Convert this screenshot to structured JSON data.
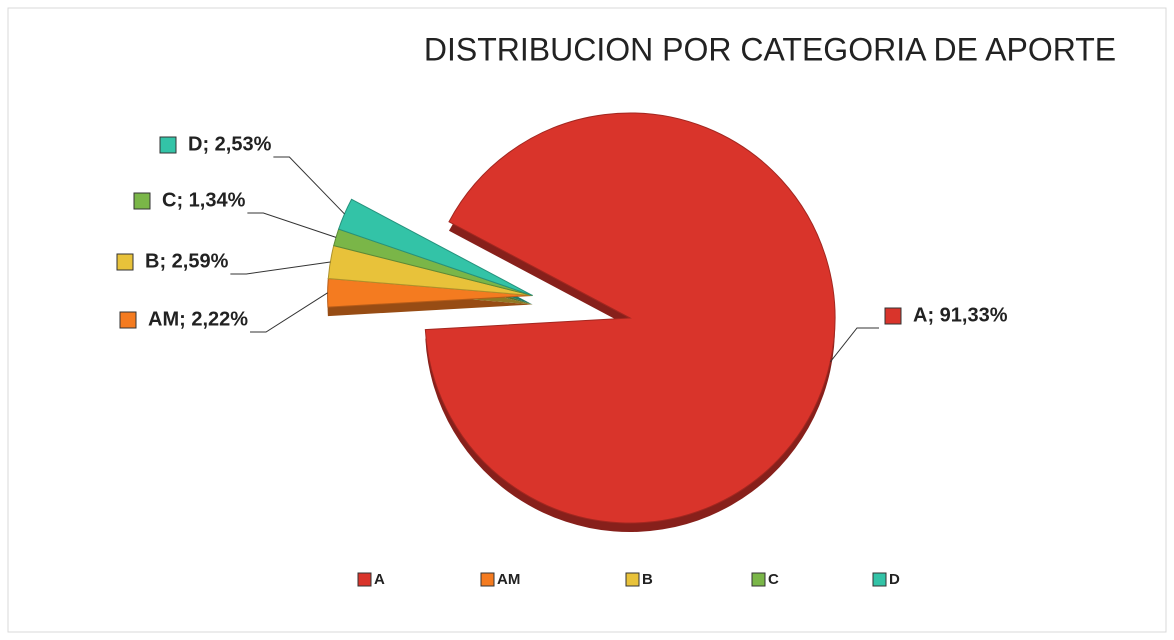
{
  "chart_data": {
    "type": "pie",
    "title": "DISTRIBUCION POR CATEGORIA DE APORTE",
    "categories": [
      "A",
      "AM",
      "B",
      "C",
      "D"
    ],
    "values": [
      91.33,
      2.22,
      2.59,
      1.34,
      2.53
    ],
    "value_labels": [
      "A; 91,33%",
      "AM; 2,22%",
      "B; 2,59%",
      "C; 1,34%",
      "D; 2,53%"
    ],
    "colors": [
      "#d9342b",
      "#f47b20",
      "#e8c23a",
      "#7ab648",
      "#33c3a7"
    ],
    "legend": "bottom"
  }
}
